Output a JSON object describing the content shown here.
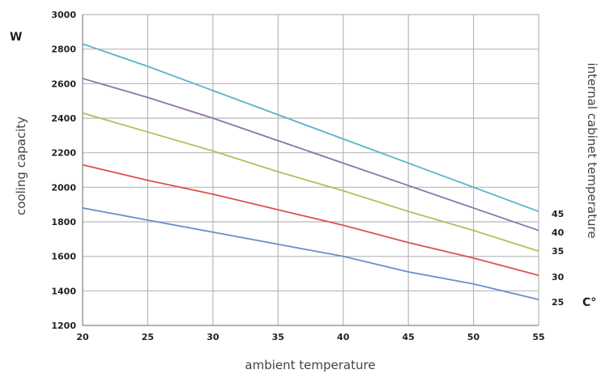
{
  "chart_data": {
    "type": "line",
    "x": [
      20,
      25,
      30,
      35,
      40,
      45,
      50,
      55
    ],
    "xlim": [
      20,
      55
    ],
    "ylim": [
      1200,
      3000
    ],
    "y_ticks": [
      1200,
      1400,
      1600,
      1800,
      2000,
      2200,
      2400,
      2600,
      2800,
      3000
    ],
    "xlabel": "ambient temperature",
    "ylabel": "cooling capacity",
    "y_unit": "W",
    "right_label": "internal cabinet temperature",
    "right_unit": "C°",
    "grid": true,
    "series": [
      {
        "name": "45",
        "color": "#5bb3cc",
        "values": [
          2830,
          2700,
          2560,
          2420,
          2280,
          2140,
          2000,
          1860
        ]
      },
      {
        "name": "40",
        "color": "#8f73ad",
        "values": [
          2630,
          2520,
          2400,
          2270,
          2140,
          2010,
          1880,
          1750
        ]
      },
      {
        "name": "35",
        "color": "#a8c45a",
        "values": [
          2430,
          2320,
          2210,
          2090,
          1980,
          1860,
          1750,
          1630
        ]
      },
      {
        "name": "30",
        "color": "#d9534f",
        "values": [
          2130,
          2040,
          1960,
          1870,
          1780,
          1680,
          1590,
          1490
        ]
      },
      {
        "name": "25",
        "color": "#6a8fc9",
        "values": [
          1880,
          1810,
          1740,
          1670,
          1600,
          1510,
          1440,
          1350
        ]
      }
    ]
  }
}
